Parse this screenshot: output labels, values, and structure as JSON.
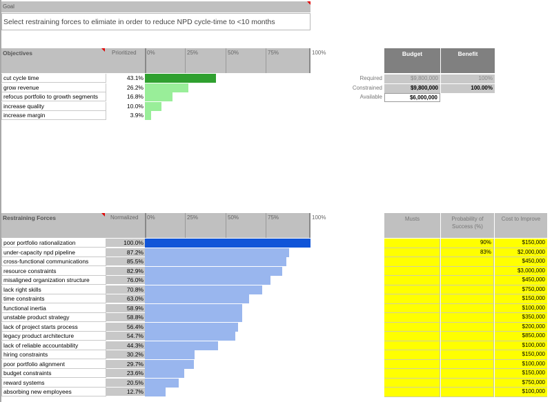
{
  "goal": {
    "header": "Goal",
    "text": "Select restraining forces to elimiate in order to reduce NPD cycle-time to <10 months"
  },
  "objectives": {
    "title": "Objectives",
    "column_label": "Prioritized",
    "scale": [
      "0%",
      "25%",
      "50%",
      "75%",
      "100%"
    ],
    "items": [
      {
        "label": "cut cycle time",
        "value": "43.1%",
        "fraction": 0.431
      },
      {
        "label": "grow revenue",
        "value": "26.2%",
        "fraction": 0.262
      },
      {
        "label": "refocus portfolio to growth segments",
        "value": "16.8%",
        "fraction": 0.168
      },
      {
        "label": "increase quality",
        "value": "10.0%",
        "fraction": 0.1
      },
      {
        "label": "increase margin",
        "value": "3.9%",
        "fraction": 0.039
      }
    ]
  },
  "budget_table": {
    "headers": [
      "Budget",
      "Benefit"
    ],
    "rows": [
      {
        "label": "Required",
        "budget": "$9,800,000",
        "benefit": "100%"
      },
      {
        "label": "Constrained",
        "budget": "$9,800,000",
        "benefit": "100.00%"
      },
      {
        "label": "Available",
        "budget": "$6,000,000",
        "benefit": ""
      }
    ]
  },
  "forces": {
    "title": "Restraining Forces",
    "column_label": "Normalized",
    "scale": [
      "0%",
      "25%",
      "50%",
      "75%",
      "100%"
    ],
    "items": [
      {
        "label": "poor portfolio rationalization",
        "value": "100.0%",
        "fraction": 1.0
      },
      {
        "label": "under-capacity npd pipeline",
        "value": "87.2%",
        "fraction": 0.872
      },
      {
        "label": "cross-functional communications",
        "value": "85.5%",
        "fraction": 0.855
      },
      {
        "label": "resource constraints",
        "value": "82.9%",
        "fraction": 0.829
      },
      {
        "label": "misaligned organization structure",
        "value": "76.0%",
        "fraction": 0.76
      },
      {
        "label": "lack right skills",
        "value": "70.8%",
        "fraction": 0.708
      },
      {
        "label": "time constraints",
        "value": "63.0%",
        "fraction": 0.63
      },
      {
        "label": "functional inertia",
        "value": "58.9%",
        "fraction": 0.589
      },
      {
        "label": "unstable product strategy",
        "value": "58.8%",
        "fraction": 0.588
      },
      {
        "label": "lack of project starts process",
        "value": "56.4%",
        "fraction": 0.564
      },
      {
        "label": "legacy product architecture",
        "value": "54.7%",
        "fraction": 0.547
      },
      {
        "label": "lack of reliable accountability",
        "value": "44.3%",
        "fraction": 0.443
      },
      {
        "label": "hiring constraints",
        "value": "30.2%",
        "fraction": 0.302
      },
      {
        "label": "poor portfolio alignment",
        "value": "29.7%",
        "fraction": 0.297
      },
      {
        "label": "budget constraints",
        "value": "23.6%",
        "fraction": 0.236
      },
      {
        "label": "reward systems",
        "value": "20.5%",
        "fraction": 0.205
      },
      {
        "label": "absorbing new employees",
        "value": "12.7%",
        "fraction": 0.127
      }
    ]
  },
  "right_table": {
    "headers": [
      "Musts",
      "Probability of Success (%)",
      "Cost to Improve"
    ],
    "rows": [
      {
        "must": "",
        "probability": "90%",
        "cost": "$150,000"
      },
      {
        "must": "",
        "probability": "83%",
        "cost": "$2,000,000"
      },
      {
        "must": "",
        "probability": "",
        "cost": "$450,000"
      },
      {
        "must": "",
        "probability": "",
        "cost": "$3,000,000"
      },
      {
        "must": "",
        "probability": "",
        "cost": "$450,000"
      },
      {
        "must": "",
        "probability": "",
        "cost": "$750,000"
      },
      {
        "must": "",
        "probability": "",
        "cost": "$150,000"
      },
      {
        "must": "",
        "probability": "",
        "cost": "$100,000"
      },
      {
        "must": "",
        "probability": "",
        "cost": "$350,000"
      },
      {
        "must": "",
        "probability": "",
        "cost": "$200,000"
      },
      {
        "must": "",
        "probability": "",
        "cost": "$850,000"
      },
      {
        "must": "",
        "probability": "",
        "cost": "$100,000"
      },
      {
        "must": "",
        "probability": "",
        "cost": "$150,000"
      },
      {
        "must": "",
        "probability": "",
        "cost": "$100,000"
      },
      {
        "must": "",
        "probability": "",
        "cost": "$150,000"
      },
      {
        "must": "",
        "probability": "",
        "cost": "$750,000"
      },
      {
        "must": "",
        "probability": "",
        "cost": "$100,000"
      }
    ]
  },
  "colors": {
    "top_objective_bar": "#2fa02f",
    "objective_bar": "#99ee99",
    "top_force_bar": "#1155d8",
    "force_bar": "#99b6ee",
    "input_cells": "#ffff00"
  }
}
